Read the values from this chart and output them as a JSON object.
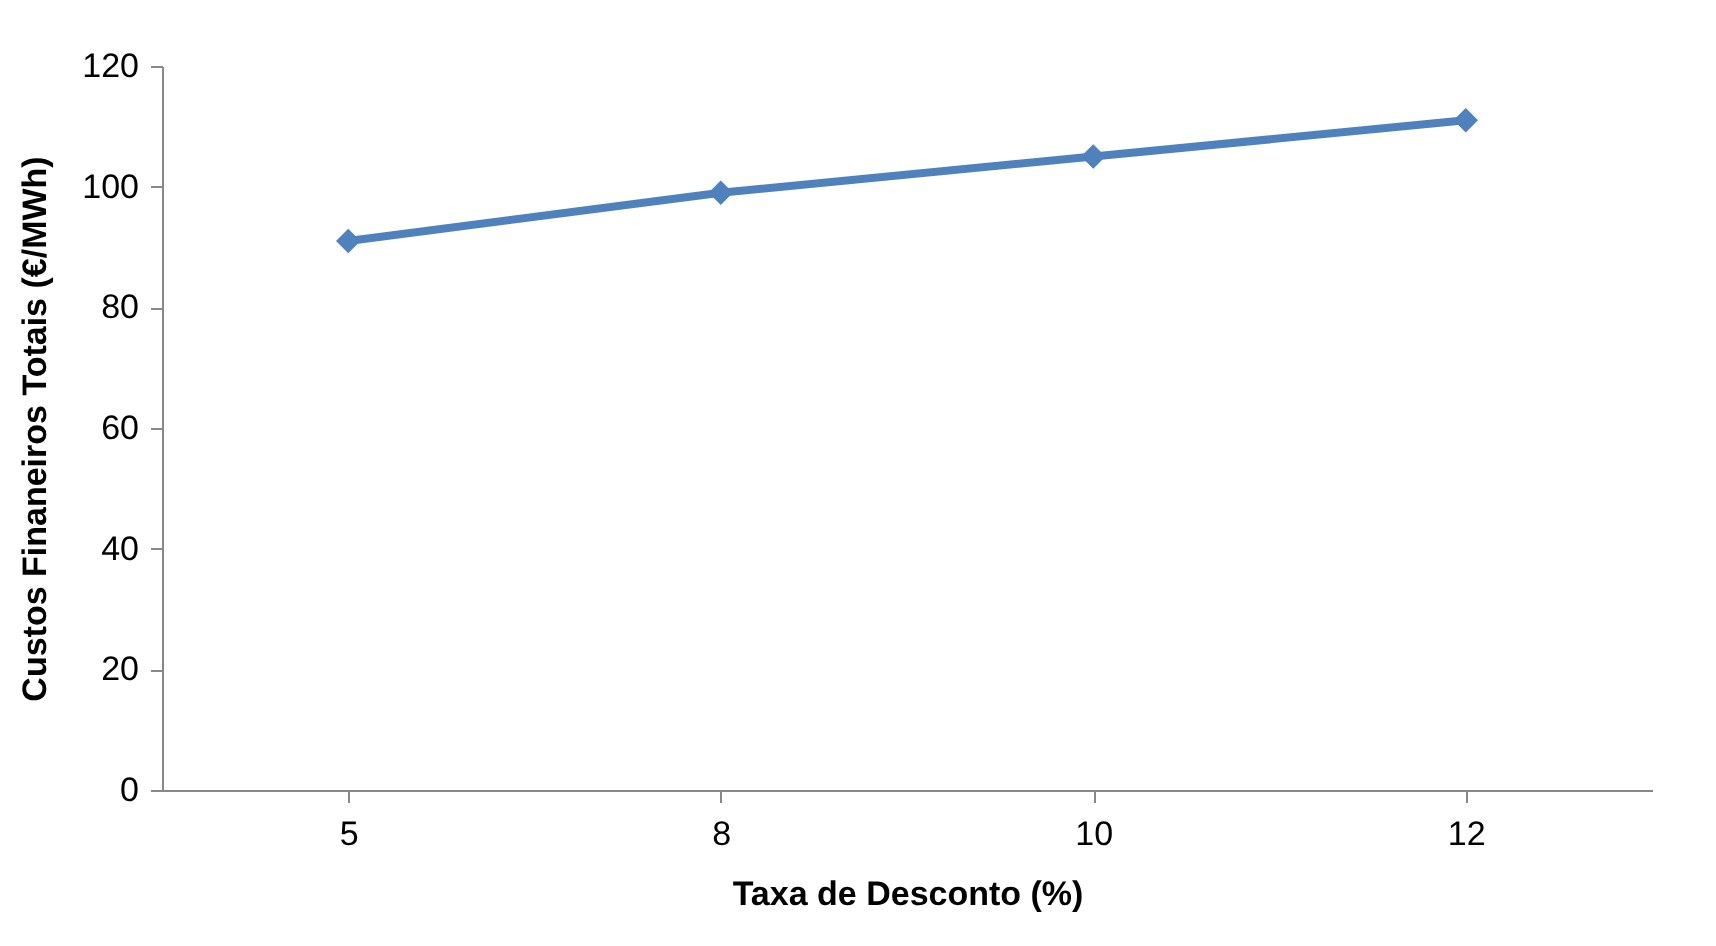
{
  "chart_data": {
    "type": "line",
    "xlabel": "Taxa de Desconto (%)",
    "ylabel": "Custos Finaneiros Totais (€/MWh)",
    "categories": [
      "5",
      "8",
      "10",
      "12"
    ],
    "series": [
      {
        "color": "#4f81bd",
        "values": [
          91,
          99,
          105,
          111
        ]
      }
    ],
    "ylim": [
      0,
      120
    ],
    "yticks": [
      0,
      20,
      40,
      60,
      80,
      100,
      120
    ],
    "grid": false,
    "marker": "diamond",
    "line_style": "solid"
  }
}
